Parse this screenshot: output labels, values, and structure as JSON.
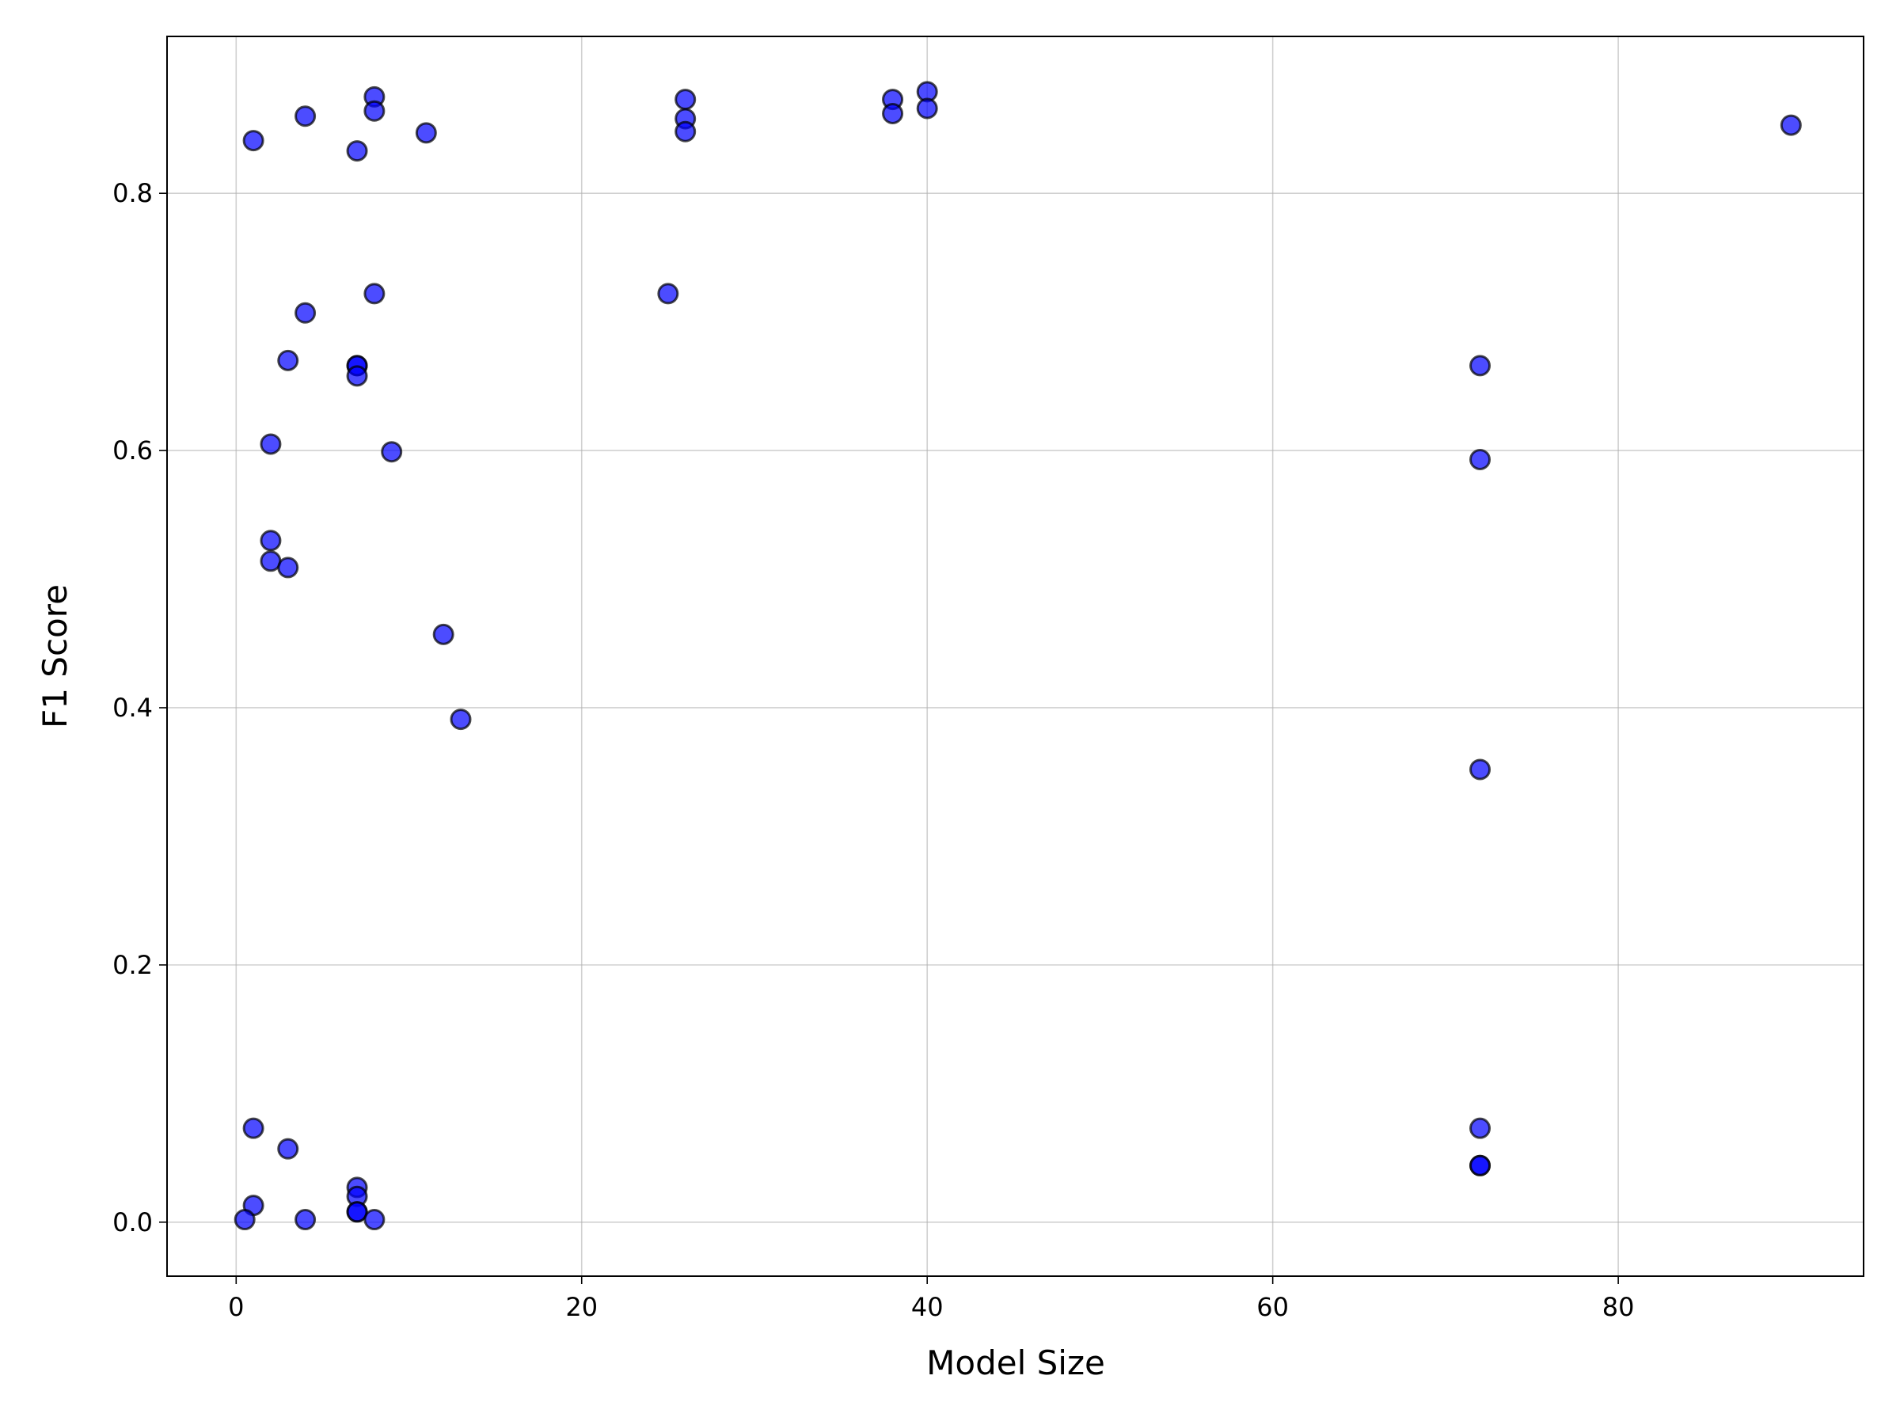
{
  "chart_data": {
    "type": "scatter",
    "title": "",
    "xlabel": "Model Size",
    "ylabel": "F1 Score",
    "xlim": [
      -4.0,
      94.2
    ],
    "ylim": [
      -0.042,
      0.922
    ],
    "xticks": [
      0,
      20,
      40,
      60,
      80
    ],
    "yticks": [
      0.0,
      0.2,
      0.4,
      0.6,
      0.8
    ],
    "xtick_labels": [
      "0",
      "20",
      "40",
      "60",
      "80"
    ],
    "ytick_labels": [
      "0.0",
      "0.2",
      "0.4",
      "0.6",
      "0.8"
    ],
    "grid": true,
    "marker_color": "#0000ff",
    "marker_edge_color": "#000000",
    "points": [
      [
        1,
        0.841
      ],
      [
        4,
        0.86
      ],
      [
        8,
        0.875
      ],
      [
        8,
        0.864
      ],
      [
        7,
        0.833
      ],
      [
        11,
        0.847
      ],
      [
        26,
        0.873
      ],
      [
        26,
        0.858
      ],
      [
        26,
        0.848
      ],
      [
        38,
        0.873
      ],
      [
        38,
        0.862
      ],
      [
        40,
        0.879
      ],
      [
        40,
        0.866
      ],
      [
        90,
        0.853
      ],
      [
        8,
        0.722
      ],
      [
        25,
        0.722
      ],
      [
        4,
        0.707
      ],
      [
        3,
        0.67
      ],
      [
        7,
        0.666
      ],
      [
        7,
        0.666
      ],
      [
        7,
        0.658
      ],
      [
        2,
        0.605
      ],
      [
        9,
        0.599
      ],
      [
        2,
        0.53
      ],
      [
        2,
        0.514
      ],
      [
        3,
        0.509
      ],
      [
        12,
        0.457
      ],
      [
        13,
        0.391
      ],
      [
        72,
        0.666
      ],
      [
        72,
        0.593
      ],
      [
        72,
        0.352
      ],
      [
        72,
        0.073
      ],
      [
        72,
        0.044
      ],
      [
        72,
        0.044
      ],
      [
        1,
        0.073
      ],
      [
        3,
        0.057
      ],
      [
        1,
        0.013
      ],
      [
        0.5,
        0.002
      ],
      [
        4,
        0.002
      ],
      [
        7,
        0.027
      ],
      [
        7,
        0.02
      ],
      [
        7,
        0.008
      ],
      [
        7,
        0.008
      ],
      [
        8,
        0.002
      ]
    ]
  }
}
